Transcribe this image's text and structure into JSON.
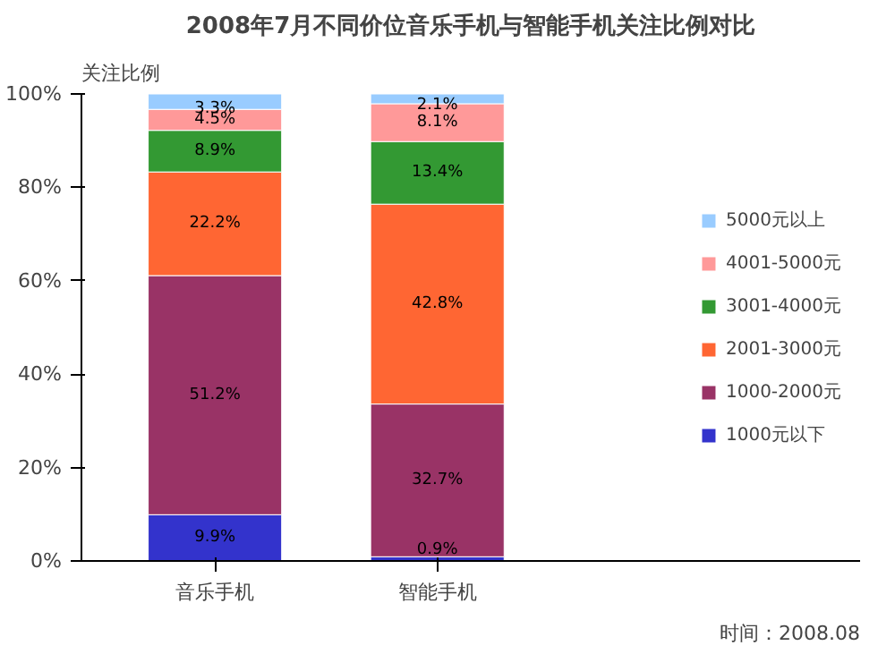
{
  "chart_data": {
    "type": "bar",
    "title": "2008年7月不同价位音乐手机与智能手机关注比例对比",
    "ylabel": "关注比例",
    "categories": [
      "音乐手机",
      "智能手机"
    ],
    "stacked": true,
    "legend": "right",
    "grid": false,
    "ylim": [
      0,
      100
    ],
    "yticks": [
      {
        "value": 0,
        "label": "0%"
      },
      {
        "value": 20,
        "label": "20%"
      },
      {
        "value": 40,
        "label": "40%"
      },
      {
        "value": 60,
        "label": "60%"
      },
      {
        "value": 80,
        "label": "80%"
      },
      {
        "value": 100,
        "label": "100%"
      }
    ],
    "series": [
      {
        "name": "1000元以下",
        "color": "#3333cc",
        "values": [
          9.9,
          0.9
        ],
        "value_labels": [
          "9.9%",
          "0.9%"
        ]
      },
      {
        "name": "1000-2000元",
        "color": "#993366",
        "values": [
          51.2,
          32.7
        ],
        "value_labels": [
          "51.2%",
          "32.7%"
        ]
      },
      {
        "name": "2001-3000元",
        "color": "#ff6633",
        "values": [
          22.2,
          42.8
        ],
        "value_labels": [
          "22.2%",
          "42.8%"
        ]
      },
      {
        "name": "3001-4000元",
        "color": "#339933",
        "values": [
          8.9,
          13.4
        ],
        "value_labels": [
          "8.9%",
          "13.4%"
        ]
      },
      {
        "name": "4001-5000元",
        "color": "#ff9999",
        "values": [
          4.5,
          8.1
        ],
        "value_labels": [
          "4.5%",
          "8.1%"
        ]
      },
      {
        "name": "5000元以上",
        "color": "#99ccff",
        "values": [
          3.3,
          2.1
        ],
        "value_labels": [
          "3.3%",
          "2.1%"
        ]
      }
    ],
    "annotations": [
      "时间：2008.08"
    ]
  }
}
